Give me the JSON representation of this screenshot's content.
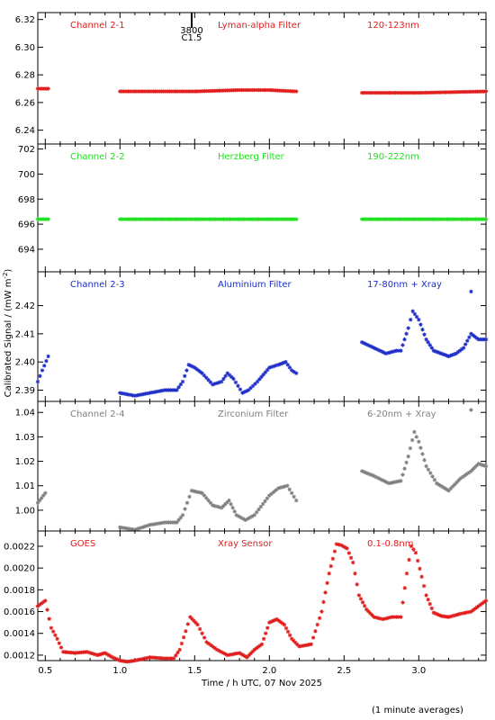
{
  "chart_data": {
    "type": "scatter",
    "xlabel": "Time / h UTC, 07 Nov 2025",
    "ylabel": "Calibrated Signal / (mW m",
    "ylabel_sup": "-2",
    "ylabel_close": ")",
    "footnote": "(1 minute averages)",
    "xlim": [
      0.45,
      3.45
    ],
    "xticks": [
      "0.5",
      "1.0",
      "1.5",
      "2.0",
      "2.5",
      "3.0"
    ],
    "annotation": {
      "x": 1.48,
      "line1": "3800",
      "line2": "C1.5"
    },
    "panels": [
      {
        "channel": "Channel 2-1",
        "filter": "Lyman-alpha Filter",
        "band": "120-123nm",
        "color": "#e01c1c",
        "ylim": [
          6.23,
          6.325
        ],
        "yticks": [
          "6.24",
          "6.26",
          "6.28",
          "6.30",
          "6.32"
        ],
        "segments": [
          {
            "x": [
              0.45,
              0.52
            ],
            "y": [
              6.27,
              6.27
            ]
          },
          {
            "x": [
              1.0,
              1.5,
              1.8,
              2.0,
              2.18
            ],
            "y": [
              6.268,
              6.268,
              6.269,
              6.269,
              6.268
            ]
          },
          {
            "x": [
              2.62,
              3.0,
              3.45
            ],
            "y": [
              6.267,
              6.267,
              6.268
            ]
          }
        ]
      },
      {
        "channel": "Channel 2-2",
        "filter": "Herzberg Filter",
        "band": "190-222nm",
        "color": "#22e022",
        "ylim": [
          692.2,
          702.4
        ],
        "yticks": [
          "694",
          "696",
          "698",
          "700",
          "702"
        ],
        "segments": [
          {
            "x": [
              0.45,
              0.52
            ],
            "y": [
              696.4,
              696.4
            ]
          },
          {
            "x": [
              1.0,
              2.18
            ],
            "y": [
              696.4,
              696.4
            ]
          },
          {
            "x": [
              2.62,
              3.45
            ],
            "y": [
              696.4,
              696.4
            ]
          }
        ]
      },
      {
        "channel": "Channel 2-3",
        "filter": "Aluminium Filter",
        "band": "17-80nm + Xray",
        "color": "#1e2ec8",
        "ylim": [
          2.386,
          2.432
        ],
        "yticks": [
          "2.39",
          "2.40",
          "2.41",
          "2.42"
        ],
        "segments": [
          {
            "x": [
              0.45,
              0.48,
              0.52
            ],
            "y": [
              2.393,
              2.397,
              2.402
            ]
          },
          {
            "x": [
              1.0,
              1.1,
              1.2,
              1.3,
              1.38,
              1.42,
              1.46,
              1.5,
              1.55,
              1.62,
              1.68,
              1.72,
              1.76,
              1.82,
              1.86,
              1.92,
              2.0,
              2.06,
              2.11,
              2.15,
              2.18
            ],
            "y": [
              2.389,
              2.388,
              2.389,
              2.39,
              2.39,
              2.393,
              2.399,
              2.398,
              2.396,
              2.392,
              2.393,
              2.396,
              2.394,
              2.389,
              2.39,
              2.393,
              2.398,
              2.399,
              2.4,
              2.397,
              2.396
            ]
          },
          {
            "x": [
              2.62,
              2.7,
              2.78,
              2.85,
              2.88,
              2.93,
              2.96,
              3.0,
              3.05,
              3.1,
              3.15,
              3.2,
              3.25,
              3.3,
              3.35,
              3.4,
              3.45
            ],
            "y": [
              2.407,
              2.405,
              2.403,
              2.404,
              2.404,
              2.412,
              2.418,
              2.415,
              2.408,
              2.404,
              2.403,
              2.402,
              2.403,
              2.405,
              2.41,
              2.408,
              2.408
            ]
          }
        ],
        "outliers": [
          {
            "x": 3.35,
            "y": 2.425
          }
        ]
      },
      {
        "channel": "Channel 2-4",
        "filter": "Zirconium Filter",
        "band": "6-20nm + Xray",
        "color": "#808080",
        "ylim": [
          0.9915,
          1.0445
        ],
        "yticks": [
          "1.00",
          "1.01",
          "1.02",
          "1.03",
          "1.04"
        ],
        "segments": [
          {
            "x": [
              0.45,
              0.5
            ],
            "y": [
              1.003,
              1.007
            ]
          },
          {
            "x": [
              1.0,
              1.1,
              1.2,
              1.3,
              1.38,
              1.42,
              1.48,
              1.55,
              1.62,
              1.68,
              1.73,
              1.78,
              1.84,
              1.9,
              2.0,
              2.06,
              2.12,
              2.18
            ],
            "y": [
              0.993,
              0.992,
              0.994,
              0.995,
              0.995,
              0.998,
              1.008,
              1.007,
              1.002,
              1.001,
              1.004,
              0.998,
              0.996,
              0.998,
              1.006,
              1.009,
              1.01,
              1.004
            ]
          },
          {
            "x": [
              2.62,
              2.7,
              2.8,
              2.88,
              2.93,
              2.97,
              3.0,
              3.05,
              3.12,
              3.2,
              3.28,
              3.35,
              3.4,
              3.45
            ],
            "y": [
              1.016,
              1.014,
              1.011,
              1.012,
              1.022,
              1.032,
              1.028,
              1.018,
              1.011,
              1.008,
              1.013,
              1.016,
              1.019,
              1.018
            ]
          }
        ],
        "outliers": [
          {
            "x": 3.35,
            "y": 1.041
          }
        ]
      },
      {
        "channel": "GOES",
        "filter": "Xray Sensor",
        "band": "0.1-0.8nm",
        "color": "#e01c1c",
        "ylim": [
          0.00115,
          0.00234
        ],
        "yticks": [
          "0.0012",
          "0.0014",
          "0.0016",
          "0.0018",
          "0.0020",
          "0.0022"
        ],
        "segments": [
          {
            "x": [
              0.45,
              0.5,
              0.54,
              0.58,
              0.62,
              0.7,
              0.78,
              0.85,
              0.9,
              0.95,
              1.0,
              1.05,
              1.1,
              1.2,
              1.3,
              1.36,
              1.4,
              1.44,
              1.47,
              1.52,
              1.58,
              1.65,
              1.72,
              1.8,
              1.85,
              1.9,
              1.95,
              2.0,
              2.05,
              2.1,
              2.15,
              2.2,
              2.28,
              2.35,
              2.4,
              2.45,
              2.48,
              2.52,
              2.56,
              2.6,
              2.65,
              2.7,
              2.76,
              2.82,
              2.88,
              2.92,
              2.95,
              2.98,
              3.02,
              3.05,
              3.1,
              3.15,
              3.2,
              3.28,
              3.35,
              3.4,
              3.45
            ],
            "y": [
              0.00165,
              0.0017,
              0.00145,
              0.00135,
              0.00123,
              0.00122,
              0.00123,
              0.0012,
              0.00122,
              0.00118,
              0.00115,
              0.00114,
              0.00115,
              0.00118,
              0.00117,
              0.00117,
              0.00125,
              0.00142,
              0.00155,
              0.00148,
              0.00132,
              0.00125,
              0.0012,
              0.00122,
              0.00118,
              0.00125,
              0.0013,
              0.0015,
              0.00153,
              0.00148,
              0.00135,
              0.00128,
              0.0013,
              0.0016,
              0.00195,
              0.00222,
              0.00221,
              0.00218,
              0.00205,
              0.00175,
              0.00162,
              0.00155,
              0.00153,
              0.00155,
              0.00155,
              0.00195,
              0.0022,
              0.00214,
              0.00192,
              0.00175,
              0.00159,
              0.00156,
              0.00155,
              0.00158,
              0.0016,
              0.00165,
              0.0017
            ]
          }
        ]
      }
    ]
  }
}
